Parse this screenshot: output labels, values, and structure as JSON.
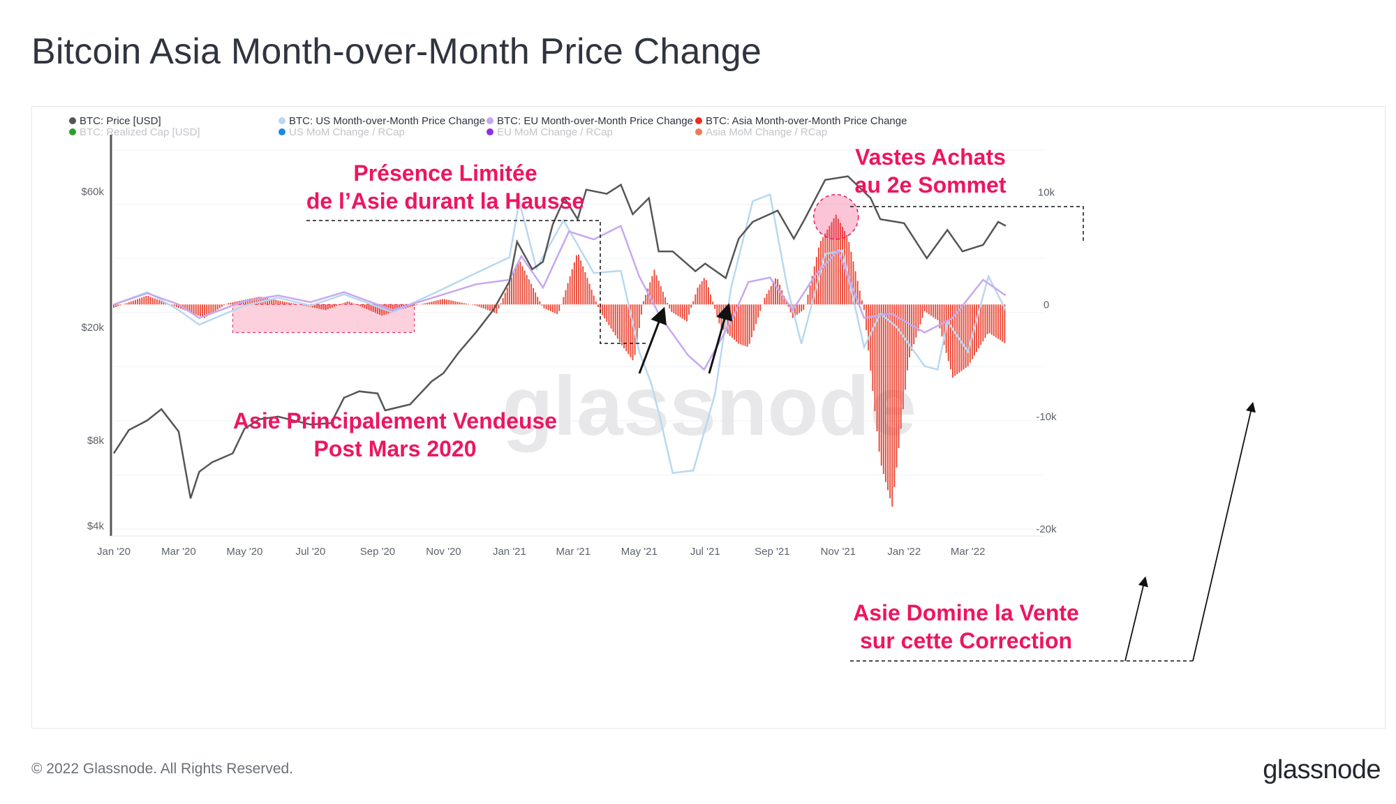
{
  "header": {
    "title": "Bitcoin Asia Month-over-Month Price Change"
  },
  "footer": {
    "copyright": "© 2022 Glassnode. All Rights Reserved.",
    "brand": "glassnode"
  },
  "watermark": "glassnode",
  "legend": [
    {
      "label": "BTC: Price [USD]",
      "color": "#555555",
      "muted": false
    },
    {
      "label": "BTC: US Month-over-Month Price Change",
      "color": "#b8d8f0",
      "muted": false
    },
    {
      "label": "BTC: EU Month-over-Month Price Change",
      "color": "#c6a8f0",
      "muted": false
    },
    {
      "label": "BTC: Asia Month-over-Month Price Change",
      "color": "#e8301c",
      "muted": false
    },
    {
      "label": "BTC: Realized Cap [USD]",
      "color": "#2ca02c",
      "muted": true
    },
    {
      "label": "US MoM Change / RCap",
      "color": "#1e88e5",
      "muted": true
    },
    {
      "label": "EU MoM Change / RCap",
      "color": "#8e30e0",
      "muted": true
    },
    {
      "label": "Asia MoM Change / RCap",
      "color": "#f07a55",
      "muted": true
    }
  ],
  "annotations": {
    "limited_presence": [
      "Présence Limitée",
      "de l’Asie durant la Hausse"
    ],
    "asia_seller": [
      "Asie Principalement Vendeuse",
      "Post Mars 2020"
    ],
    "big_buys": [
      "Vastes Achats",
      "au 2e Sommet"
    ],
    "asia_dominates": [
      "Asie Domine la Vente",
      "sur cette Correction"
    ]
  },
  "colors": {
    "price": "#555555",
    "us": "#b8d8f0",
    "eu": "#c6a8f0",
    "asia": "#e8301c",
    "annotation": "#ee1560",
    "highlight_fill": "#fcd0dc"
  },
  "chart_data": {
    "type": "line",
    "x_ticks": [
      "Jan '20",
      "Mar '20",
      "May '20",
      "Jul '20",
      "Sep '20",
      "Nov '20",
      "Jan '21",
      "Mar '21",
      "May '21",
      "Jul '21",
      "Sep '21",
      "Nov '21",
      "Jan '22",
      "Mar '22"
    ],
    "y_left": {
      "scale": "log",
      "ticks": [
        "$4k",
        "$8k",
        "$20k",
        "$60k"
      ],
      "tick_values": [
        4000,
        8000,
        20000,
        60000
      ],
      "range": [
        3900,
        90000
      ]
    },
    "y_right": {
      "scale": "linear",
      "ticks": [
        "10k",
        "0",
        "-10k",
        "-20k"
      ],
      "tick_values": [
        10000,
        0,
        -10000,
        -20000
      ],
      "range": [
        -20000,
        14500
      ]
    },
    "grid": true,
    "legend_position": "top",
    "series": [
      {
        "name": "BTC: Price [USD]",
        "axis": "left",
        "points": [
          [
            "2020-01-01",
            7200
          ],
          [
            "2020-01-15",
            8700
          ],
          [
            "2020-02-01",
            9400
          ],
          [
            "2020-02-14",
            10300
          ],
          [
            "2020-03-01",
            8600
          ],
          [
            "2020-03-12",
            5000
          ],
          [
            "2020-03-20",
            6200
          ],
          [
            "2020-04-01",
            6700
          ],
          [
            "2020-04-20",
            7200
          ],
          [
            "2020-05-01",
            8800
          ],
          [
            "2020-05-15",
            9500
          ],
          [
            "2020-06-01",
            9700
          ],
          [
            "2020-06-20",
            9300
          ],
          [
            "2020-07-01",
            9100
          ],
          [
            "2020-07-20",
            9200
          ],
          [
            "2020-08-01",
            11300
          ],
          [
            "2020-08-15",
            11900
          ],
          [
            "2020-09-01",
            11700
          ],
          [
            "2020-09-08",
            10200
          ],
          [
            "2020-10-01",
            10700
          ],
          [
            "2020-10-21",
            12900
          ],
          [
            "2020-11-01",
            13800
          ],
          [
            "2020-11-15",
            16300
          ],
          [
            "2020-12-01",
            19200
          ],
          [
            "2020-12-17",
            23000
          ],
          [
            "2021-01-01",
            29000
          ],
          [
            "2021-01-08",
            40000
          ],
          [
            "2021-01-22",
            32000
          ],
          [
            "2021-02-01",
            34000
          ],
          [
            "2021-02-10",
            46000
          ],
          [
            "2021-02-21",
            57000
          ],
          [
            "2021-03-05",
            48000
          ],
          [
            "2021-03-13",
            61000
          ],
          [
            "2021-04-01",
            59000
          ],
          [
            "2021-04-14",
            63500
          ],
          [
            "2021-04-25",
            50000
          ],
          [
            "2021-05-10",
            57000
          ],
          [
            "2021-05-19",
            37000
          ],
          [
            "2021-06-01",
            37000
          ],
          [
            "2021-06-22",
            31500
          ],
          [
            "2021-07-01",
            33500
          ],
          [
            "2021-07-20",
            29800
          ],
          [
            "2021-08-01",
            41000
          ],
          [
            "2021-08-14",
            47000
          ],
          [
            "2021-09-06",
            51500
          ],
          [
            "2021-09-21",
            41000
          ],
          [
            "2021-10-01",
            48000
          ],
          [
            "2021-10-20",
            66000
          ],
          [
            "2021-11-10",
            68000
          ],
          [
            "2021-12-01",
            57000
          ],
          [
            "2021-12-10",
            48000
          ],
          [
            "2022-01-01",
            46500
          ],
          [
            "2022-01-22",
            35000
          ],
          [
            "2022-02-10",
            44000
          ],
          [
            "2022-02-24",
            37000
          ],
          [
            "2022-03-15",
            39000
          ],
          [
            "2022-03-29",
            47000
          ],
          [
            "2022-04-05",
            45500
          ]
        ]
      },
      {
        "name": "BTC: US Month-over-Month Price Change",
        "axis": "right",
        "points": [
          [
            "2020-01-01",
            0
          ],
          [
            "2020-02-01",
            1100
          ],
          [
            "2020-03-01",
            -500
          ],
          [
            "2020-03-20",
            -1800
          ],
          [
            "2020-05-01",
            -100
          ],
          [
            "2020-06-01",
            600
          ],
          [
            "2020-07-01",
            -100
          ],
          [
            "2020-08-01",
            900
          ],
          [
            "2020-09-15",
            -700
          ],
          [
            "2020-11-01",
            1400
          ],
          [
            "2020-12-01",
            2800
          ],
          [
            "2021-01-01",
            4200
          ],
          [
            "2021-01-10",
            9200
          ],
          [
            "2021-01-26",
            3200
          ],
          [
            "2021-02-20",
            7500
          ],
          [
            "2021-03-20",
            2800
          ],
          [
            "2021-04-14",
            3000
          ],
          [
            "2021-05-01",
            -4200
          ],
          [
            "2021-05-12",
            -7000
          ],
          [
            "2021-05-20",
            -10000
          ],
          [
            "2021-06-01",
            -15000
          ],
          [
            "2021-06-20",
            -14800
          ],
          [
            "2021-07-10",
            -8000
          ],
          [
            "2021-07-25",
            1500
          ],
          [
            "2021-08-14",
            9200
          ],
          [
            "2021-08-30",
            9800
          ],
          [
            "2021-09-15",
            1500
          ],
          [
            "2021-09-28",
            -3500
          ],
          [
            "2021-10-20",
            4500
          ],
          [
            "2021-11-05",
            4800
          ],
          [
            "2021-11-25",
            -3800
          ],
          [
            "2021-12-10",
            -800
          ],
          [
            "2021-12-25",
            -2000
          ],
          [
            "2022-01-20",
            -5500
          ],
          [
            "2022-02-01",
            -5800
          ],
          [
            "2022-02-10",
            -1500
          ],
          [
            "2022-03-01",
            -4200
          ],
          [
            "2022-03-20",
            2500
          ],
          [
            "2022-04-05",
            -500
          ]
        ]
      },
      {
        "name": "BTC: EU Month-over-Month Price Change",
        "axis": "right",
        "points": [
          [
            "2020-01-01",
            0
          ],
          [
            "2020-02-01",
            1000
          ],
          [
            "2020-03-01",
            0
          ],
          [
            "2020-03-20",
            -1200
          ],
          [
            "2020-05-01",
            300
          ],
          [
            "2020-06-01",
            800
          ],
          [
            "2020-07-01",
            200
          ],
          [
            "2020-08-01",
            1100
          ],
          [
            "2020-09-15",
            -500
          ],
          [
            "2020-11-01",
            900
          ],
          [
            "2020-12-01",
            1800
          ],
          [
            "2021-01-01",
            2200
          ],
          [
            "2021-01-12",
            4300
          ],
          [
            "2021-02-01",
            1500
          ],
          [
            "2021-02-25",
            6500
          ],
          [
            "2021-03-20",
            5800
          ],
          [
            "2021-04-14",
            7000
          ],
          [
            "2021-05-01",
            2500
          ],
          [
            "2021-05-20",
            -1000
          ],
          [
            "2021-06-15",
            -4500
          ],
          [
            "2021-06-30",
            -5800
          ],
          [
            "2021-07-25",
            -1500
          ],
          [
            "2021-08-10",
            2000
          ],
          [
            "2021-08-30",
            2400
          ],
          [
            "2021-09-20",
            -500
          ],
          [
            "2021-10-10",
            2500
          ],
          [
            "2021-11-01",
            4800
          ],
          [
            "2021-11-25",
            -1200
          ],
          [
            "2021-12-20",
            -800
          ],
          [
            "2022-01-20",
            -2500
          ],
          [
            "2022-02-15",
            -1200
          ],
          [
            "2022-03-15",
            2200
          ],
          [
            "2022-04-05",
            800
          ]
        ]
      },
      {
        "name": "BTC: Asia Month-over-Month Price Change",
        "axis": "right",
        "style": "columns",
        "points": [
          [
            "2020-01-01",
            -300
          ],
          [
            "2020-02-01",
            800
          ],
          [
            "2020-03-01",
            -300
          ],
          [
            "2020-03-25",
            -1200
          ],
          [
            "2020-04-15",
            100
          ],
          [
            "2020-05-15",
            700
          ],
          [
            "2020-06-15",
            100
          ],
          [
            "2020-07-15",
            -500
          ],
          [
            "2020-08-05",
            300
          ],
          [
            "2020-09-05",
            -1000
          ],
          [
            "2020-10-01",
            -200
          ],
          [
            "2020-11-01",
            500
          ],
          [
            "2020-12-01",
            -100
          ],
          [
            "2020-12-20",
            -800
          ],
          [
            "2021-01-10",
            4000
          ],
          [
            "2021-02-01",
            -300
          ],
          [
            "2021-02-15",
            -900
          ],
          [
            "2021-03-05",
            4700
          ],
          [
            "2021-03-25",
            -500
          ],
          [
            "2021-04-14",
            -3500
          ],
          [
            "2021-04-26",
            -5100
          ],
          [
            "2021-05-05",
            300
          ],
          [
            "2021-05-15",
            3100
          ],
          [
            "2021-05-30",
            -600
          ],
          [
            "2021-06-14",
            -1500
          ],
          [
            "2021-06-24",
            1500
          ],
          [
            "2021-07-01",
            2500
          ],
          [
            "2021-07-15",
            -2000
          ],
          [
            "2021-08-01",
            -3500
          ],
          [
            "2021-08-10",
            -3800
          ],
          [
            "2021-08-25",
            600
          ],
          [
            "2021-09-05",
            2500
          ],
          [
            "2021-09-20",
            -1200
          ],
          [
            "2021-10-01",
            -400
          ],
          [
            "2021-10-15",
            5500
          ],
          [
            "2021-10-30",
            8000
          ],
          [
            "2021-11-10",
            6000
          ],
          [
            "2021-11-25",
            -500
          ],
          [
            "2021-12-10",
            -14000
          ],
          [
            "2021-12-21",
            -18000
          ],
          [
            "2022-01-05",
            -5000
          ],
          [
            "2022-01-20",
            -600
          ],
          [
            "2022-02-01",
            -1400
          ],
          [
            "2022-02-15",
            -6500
          ],
          [
            "2022-03-01",
            -5500
          ],
          [
            "2022-03-20",
            -2500
          ],
          [
            "2022-04-05",
            -3500
          ]
        ]
      }
    ],
    "highlight_region": {
      "x": [
        "2020-04-20",
        "2020-10-05"
      ],
      "y_right": [
        0,
        -2500
      ]
    },
    "highlight_circle": {
      "x": "2021-10-30",
      "y_right": 7800
    }
  }
}
